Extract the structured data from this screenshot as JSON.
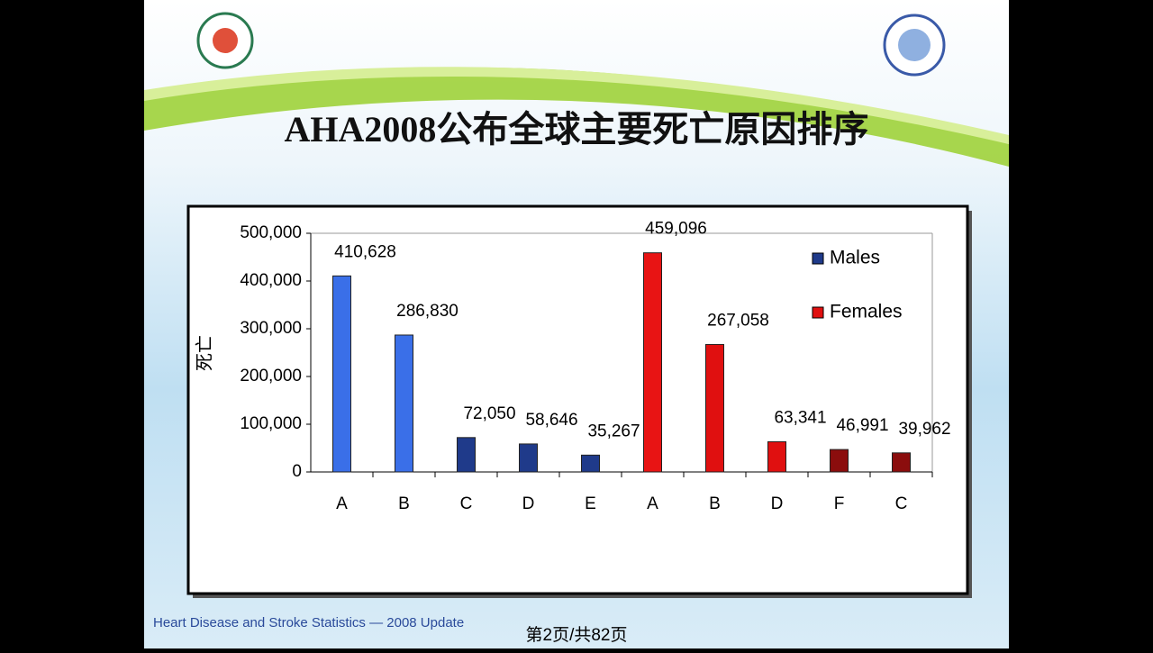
{
  "slide": {
    "title": "AHA2008公布全球主要死亡原因排序",
    "footer": "Heart Disease and Stroke Statistics — 2008 Update",
    "page": "第2页/共82页"
  },
  "chart_data": {
    "type": "bar",
    "categories": [
      "A",
      "B",
      "C",
      "D",
      "E",
      "A",
      "B",
      "D",
      "F",
      "C"
    ],
    "ylabel": "死亡",
    "series": [
      {
        "name": "Males",
        "color": "#1f3a8a",
        "colors": [
          "#3a6fe8",
          "#3a6fe8",
          "#1f3a8a",
          "#1f3a8a",
          "#1f3a8a",
          "#1f3a8a",
          "#1f3a8a",
          "#1f3a8a",
          "#1f3a8a",
          "#1f3a8a"
        ],
        "values": [
          410628,
          286830,
          72050,
          58646,
          35267,
          null,
          null,
          null,
          null,
          null
        ],
        "value_labels": [
          "410,628",
          "286,830",
          "72,050",
          "58,646",
          "35,267",
          null,
          null,
          null,
          null,
          null
        ]
      },
      {
        "name": "Females",
        "color": "#e01010",
        "colors": [
          "#e01010",
          "#e01010",
          "#e01010",
          "#e01010",
          "#e01010",
          "#e81414",
          "#e01010",
          "#e01010",
          "#8b0d0d",
          "#8b0d0d"
        ],
        "values": [
          null,
          null,
          null,
          null,
          null,
          459096,
          267058,
          63341,
          46991,
          39962
        ],
        "value_labels": [
          null,
          null,
          null,
          null,
          null,
          "459,096",
          "267,058",
          "63,341",
          "46,991",
          "39,962"
        ]
      }
    ],
    "ylim": [
      0,
      500000
    ],
    "yticks": [
      {
        "value": 0,
        "label": "0"
      },
      {
        "value": 100000,
        "label": "100,000"
      },
      {
        "value": 200000,
        "label": "200,000"
      },
      {
        "value": 300000,
        "label": "300,000"
      },
      {
        "value": 400000,
        "label": "400,000"
      },
      {
        "value": 500000,
        "label": "500,000"
      }
    ],
    "legend": "upper right"
  }
}
